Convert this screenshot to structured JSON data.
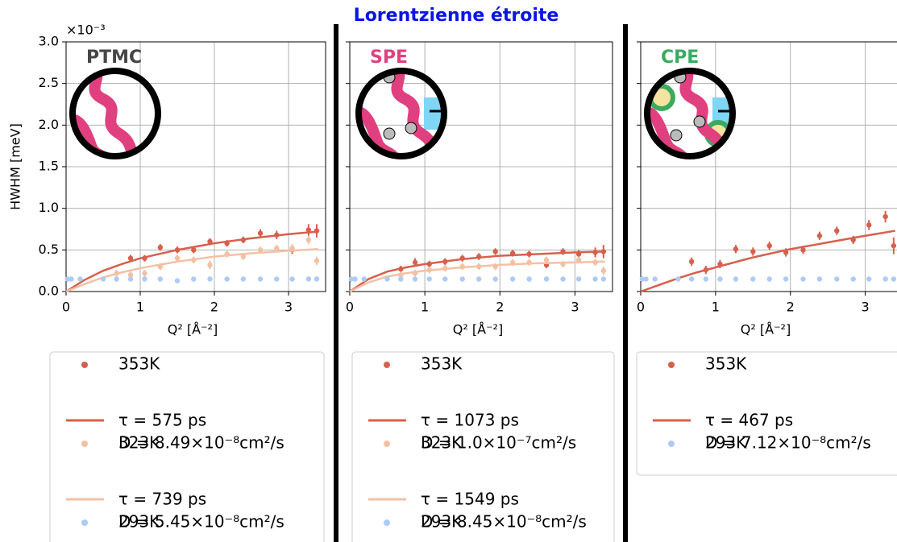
{
  "title": "Lorentzienne étroite",
  "chart_data": [
    {
      "type": "scatter",
      "label": "PTMC",
      "label_color": "#454545",
      "ylabel": "HWHM [meV]",
      "y_offset_label": "×10⁻³",
      "xlabel": "Q² [Å⁻²]",
      "xlim": [
        0,
        3.5
      ],
      "ylim": [
        0,
        3.0
      ],
      "xticks": [
        0,
        1,
        2,
        3
      ],
      "yticks": [
        {
          "value": 0,
          "label": "0.0"
        },
        0.5,
        {
          "value": 1,
          "label": "1.0"
        },
        1.5,
        {
          "value": 2,
          "label": "2.0"
        },
        2.5,
        {
          "value": 3,
          "label": "3.0"
        }
      ],
      "show_ytick_labels": true,
      "grid": true,
      "series": [
        {
          "name": "353K",
          "kind": "points",
          "color": "#d6604d",
          "x": [
            0.87,
            1.06,
            1.27,
            1.5,
            1.72,
            1.94,
            2.17,
            2.39,
            2.62,
            2.84,
            3.05,
            3.27,
            3.38
          ],
          "values": [
            0.4,
            0.4,
            0.53,
            0.5,
            0.5,
            0.6,
            0.58,
            0.62,
            0.7,
            0.68,
            0.5,
            0.74,
            0.73
          ],
          "errors": [
            0.04,
            0.04,
            0.04,
            0.04,
            0.04,
            0.04,
            0.04,
            0.04,
            0.05,
            0.05,
            0.05,
            0.07,
            0.08
          ]
        },
        {
          "name": [
            "τ = 575 ps",
            "D = 8.49×10⁻⁸cm²/s"
          ],
          "kind": "line",
          "color": "#d6604d",
          "x": [
            0,
            0.25,
            0.5,
            0.75,
            1,
            1.5,
            2,
            2.5,
            3,
            3.4
          ],
          "values": [
            0,
            0.14,
            0.25,
            0.33,
            0.4,
            0.5,
            0.58,
            0.64,
            0.69,
            0.72
          ]
        },
        {
          "name": "323K",
          "kind": "points",
          "color": "#f4c0a4",
          "x": [
            0.68,
            0.87,
            1.06,
            1.27,
            1.5,
            1.72,
            1.94,
            2.17,
            2.39,
            2.62,
            2.84,
            3.05,
            3.27,
            3.38
          ],
          "values": [
            0.22,
            0.2,
            0.22,
            0.3,
            0.4,
            0.38,
            0.32,
            0.45,
            0.42,
            0.5,
            0.52,
            0.52,
            0.62,
            0.37
          ],
          "errors": [
            0.04,
            0.04,
            0.04,
            0.04,
            0.04,
            0.04,
            0.05,
            0.04,
            0.04,
            0.04,
            0.04,
            0.05,
            0.05,
            0.05
          ]
        },
        {
          "name": [
            "τ = 739 ps",
            "D = 5.45×10⁻⁸cm²/s"
          ],
          "kind": "line",
          "color": "#f4c0a4",
          "x": [
            0,
            0.25,
            0.5,
            0.75,
            1,
            1.5,
            2,
            2.5,
            3,
            3.4
          ],
          "values": [
            0,
            0.09,
            0.17,
            0.23,
            0.28,
            0.36,
            0.42,
            0.46,
            0.49,
            0.51
          ]
        },
        {
          "name": "293K",
          "kind": "points",
          "color": "#aecbf5",
          "x": [
            0.02,
            0.07,
            0.19,
            0.5,
            0.68,
            0.87,
            1.06,
            1.27,
            1.5,
            1.72,
            1.94,
            2.17,
            2.39,
            2.62,
            2.84,
            3.05,
            3.27,
            3.38
          ],
          "values": [
            0.15,
            0.15,
            0.15,
            0.15,
            0.15,
            0.15,
            0.15,
            0.15,
            0.13,
            0.15,
            0.15,
            0.15,
            0.15,
            0.15,
            0.15,
            0.15,
            0.15,
            0.15
          ]
        }
      ]
    },
    {
      "type": "scatter",
      "label": "SPE",
      "label_color": "#e0407f",
      "xlabel": "Q² [Å⁻²]",
      "xlim": [
        0,
        3.5
      ],
      "ylim": [
        0,
        3.0
      ],
      "xticks": [
        0,
        1,
        2,
        3
      ],
      "yticks": [
        0,
        0.5,
        1,
        1.5,
        2,
        2.5,
        3
      ],
      "show_ytick_labels": false,
      "grid": true,
      "series": [
        {
          "name": "353K",
          "kind": "points",
          "color": "#d6604d",
          "x": [
            0.68,
            0.87,
            1.06,
            1.27,
            1.5,
            1.72,
            1.94,
            2.17,
            2.39,
            2.62,
            2.84,
            3.05,
            3.27,
            3.38
          ],
          "values": [
            0.27,
            0.35,
            0.33,
            0.36,
            0.4,
            0.42,
            0.48,
            0.46,
            0.45,
            0.32,
            0.48,
            0.45,
            0.47,
            0.48
          ],
          "errors": [
            0.04,
            0.05,
            0.04,
            0.04,
            0.04,
            0.04,
            0.04,
            0.04,
            0.04,
            0.04,
            0.04,
            0.05,
            0.06,
            0.08
          ]
        },
        {
          "name": [
            "τ = 1073 ps",
            "D = 1.0×10⁻⁷cm²/s"
          ],
          "kind": "line",
          "color": "#d6604d",
          "x": [
            0,
            0.25,
            0.5,
            0.75,
            1,
            1.5,
            2,
            2.5,
            3,
            3.4
          ],
          "values": [
            0,
            0.15,
            0.24,
            0.29,
            0.33,
            0.39,
            0.43,
            0.45,
            0.47,
            0.48
          ]
        },
        {
          "name": "323K",
          "kind": "points",
          "color": "#f4c0a4",
          "x": [
            0.68,
            0.87,
            1.06,
            1.27,
            1.5,
            1.72,
            1.94,
            2.17,
            2.39,
            2.62,
            2.84,
            3.05,
            3.27,
            3.38
          ],
          "values": [
            0.2,
            0.22,
            0.26,
            0.28,
            0.3,
            0.3,
            0.3,
            0.35,
            0.35,
            0.38,
            0.33,
            0.38,
            0.35,
            0.25
          ],
          "errors": [
            0.04,
            0.04,
            0.04,
            0.04,
            0.04,
            0.04,
            0.04,
            0.04,
            0.04,
            0.04,
            0.04,
            0.04,
            0.04,
            0.05
          ]
        },
        {
          "name": [
            "τ = 1549 ps",
            "D = 8.45×10⁻⁸cm²/s"
          ],
          "kind": "line",
          "color": "#f4c0a4",
          "x": [
            0,
            0.25,
            0.5,
            0.75,
            1,
            1.5,
            2,
            2.5,
            3,
            3.4
          ],
          "values": [
            0,
            0.11,
            0.18,
            0.22,
            0.25,
            0.29,
            0.32,
            0.34,
            0.35,
            0.36
          ]
        },
        {
          "name": "293K",
          "kind": "points",
          "color": "#aecbf5",
          "x": [
            0.02,
            0.07,
            0.19,
            0.5,
            0.68,
            0.87,
            1.06,
            1.27,
            1.5,
            1.72,
            1.94,
            2.17,
            2.39,
            2.62,
            2.84,
            3.05,
            3.27,
            3.38
          ],
          "values": [
            0.15,
            0.15,
            0.15,
            0.15,
            0.15,
            0.15,
            0.15,
            0.15,
            0.15,
            0.15,
            0.15,
            0.15,
            0.15,
            0.15,
            0.15,
            0.15,
            0.15,
            0.15
          ]
        }
      ]
    },
    {
      "type": "scatter",
      "label": "CPE",
      "label_color": "#3aaa60",
      "xlabel": "Q² [Å⁻²]",
      "xlim": [
        0,
        3.5
      ],
      "ylim": [
        0,
        3.0
      ],
      "xticks": [
        0,
        1,
        2,
        3
      ],
      "yticks": [
        0,
        0.5,
        1,
        1.5,
        2,
        2.5,
        3
      ],
      "show_ytick_labels": false,
      "grid": true,
      "series": [
        {
          "name": "353K",
          "kind": "points",
          "color": "#d6604d",
          "x": [
            0.68,
            0.87,
            1.06,
            1.27,
            1.5,
            1.72,
            1.94,
            2.17,
            2.39,
            2.62,
            2.84,
            3.05,
            3.27,
            3.38
          ],
          "values": [
            0.36,
            0.26,
            0.33,
            0.51,
            0.48,
            0.55,
            0.47,
            0.5,
            0.67,
            0.73,
            0.62,
            0.8,
            0.9,
            0.55
          ],
          "errors": [
            0.05,
            0.05,
            0.05,
            0.05,
            0.05,
            0.05,
            0.05,
            0.05,
            0.05,
            0.05,
            0.05,
            0.06,
            0.07,
            0.1
          ]
        },
        {
          "name": [
            "τ = 467 ps",
            "D = 7.12×10⁻⁸cm²/s"
          ],
          "kind": "line",
          "color": "#d6604d",
          "x": [
            0,
            0.25,
            0.5,
            0.75,
            1,
            1.5,
            2,
            2.5,
            3,
            3.4
          ],
          "values": [
            0,
            0.08,
            0.16,
            0.23,
            0.29,
            0.41,
            0.51,
            0.59,
            0.67,
            0.73
          ]
        },
        {
          "name": "293K",
          "kind": "points",
          "color": "#aecbf5",
          "x": [
            0.02,
            0.07,
            0.19,
            0.5,
            0.68,
            0.87,
            1.06,
            1.27,
            1.5,
            1.72,
            1.94,
            2.17,
            2.39,
            2.62,
            2.84,
            3.05,
            3.27,
            3.38
          ],
          "values": [
            0.15,
            0.15,
            0.15,
            0.15,
            0.15,
            0.15,
            0.15,
            0.15,
            0.15,
            0.15,
            0.15,
            0.15,
            0.15,
            0.15,
            0.15,
            0.15,
            0.15,
            0.15
          ]
        }
      ]
    }
  ]
}
